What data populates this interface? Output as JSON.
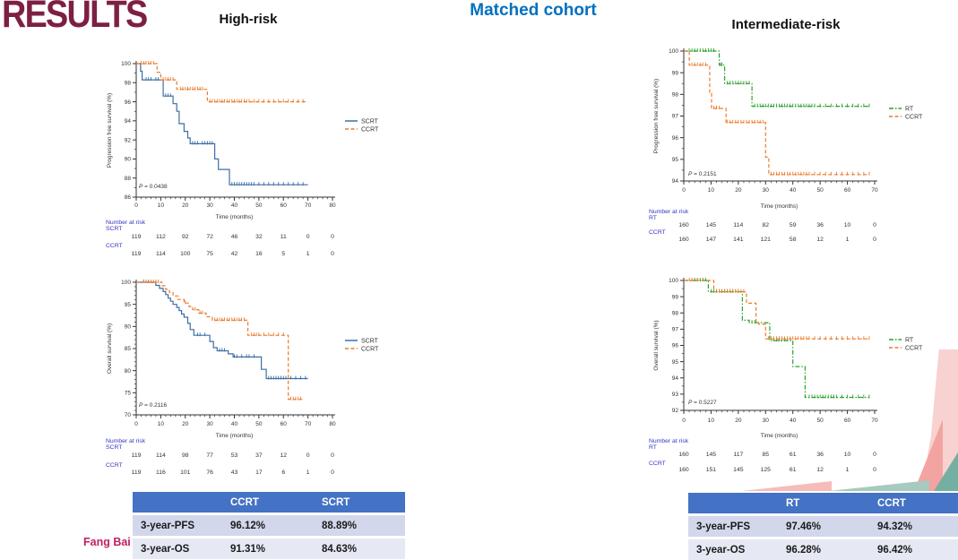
{
  "slide": {
    "title": "RESULTS",
    "columns": {
      "left": "High-risk",
      "center": "Matched cohort",
      "right": "Intermediate-risk"
    },
    "author": "Fang Bai"
  },
  "colors": {
    "title": "#7d1f44",
    "matched_cohort": "#0070c0",
    "author": "#c21f60",
    "scrt": "#3d6fa5",
    "ccrt": "#e97c2c",
    "rt": "#2ca02c",
    "axis": "#333333",
    "at_risk_label": "#3535c3",
    "table_header_bg": "#4472c4",
    "table_row_odd_bg": "#d2d7eb",
    "table_row_even_bg": "#e6e9f4"
  },
  "chart_data": [
    {
      "id": "high_risk_pfs",
      "type": "line",
      "group": "High-risk",
      "ylabel": "Progression free survival (%)",
      "xlabel": "Time (months)",
      "p_value": "P = 0.0438",
      "xlim": [
        0,
        80
      ],
      "xticks": [
        0,
        10,
        20,
        30,
        40,
        50,
        60,
        70,
        80
      ],
      "minor_x": 2,
      "ylim": [
        86,
        100
      ],
      "yticks": [
        86,
        88,
        90,
        92,
        94,
        96,
        98,
        100
      ],
      "minor_y": 1,
      "legend_position": "right",
      "series": [
        {
          "name": "SCRT",
          "color": "#3d6fa5",
          "style": "solid",
          "steps": [
            [
              0,
              100
            ],
            [
              1.8,
              99.2
            ],
            [
              2.4,
              98.3
            ],
            [
              11,
              96.6
            ],
            [
              15,
              95.8
            ],
            [
              16.5,
              95.0
            ],
            [
              17.5,
              93.7
            ],
            [
              19.5,
              92.9
            ],
            [
              21,
              92.2
            ],
            [
              22,
              91.6
            ],
            [
              32,
              90.0
            ],
            [
              33.5,
              88.9
            ],
            [
              38,
              87.3
            ]
          ],
          "end_x": 70,
          "censor_x": [
            4,
            5,
            6,
            8,
            9,
            12,
            13,
            14,
            23,
            24,
            25,
            27,
            28,
            29,
            30,
            31,
            39,
            40,
            41,
            42,
            43,
            44,
            45,
            46,
            47,
            48,
            50,
            52,
            54,
            56,
            58,
            60,
            62,
            64,
            66,
            68
          ]
        },
        {
          "name": "CCRT",
          "color": "#e97c2c",
          "style": "dashed",
          "steps": [
            [
              0,
              100
            ],
            [
              8.5,
              99.1
            ],
            [
              10,
              98.3
            ],
            [
              16.5,
              97.3
            ],
            [
              29,
              96.0
            ]
          ],
          "end_x": 70,
          "censor_x": [
            2,
            3,
            4,
            5,
            6,
            7,
            11,
            12,
            13,
            14,
            15,
            18,
            19,
            20,
            21,
            22,
            23,
            24,
            25,
            26,
            27,
            30,
            31,
            32,
            33,
            34,
            35,
            36,
            37,
            38,
            39,
            40,
            41,
            42,
            43,
            44,
            45,
            46,
            48,
            50,
            52,
            54,
            56,
            58,
            60,
            62,
            64,
            66,
            68
          ]
        }
      ],
      "number_at_risk": {
        "label": "Number at risk",
        "rows": [
          {
            "name": "SCRT",
            "values": [
              119,
              112,
              92,
              72,
              46,
              32,
              11,
              0,
              0
            ]
          },
          {
            "name": "CCRT",
            "values": [
              119,
              114,
              100,
              75,
              42,
              16,
              5,
              1,
              0
            ]
          }
        ]
      }
    },
    {
      "id": "high_risk_os",
      "type": "line",
      "group": "High-risk",
      "ylabel": "Overall survival (%)",
      "xlabel": "Time (months)",
      "p_value": "P = 0.2116",
      "xlim": [
        0,
        80
      ],
      "xticks": [
        0,
        10,
        20,
        30,
        40,
        50,
        60,
        70,
        80
      ],
      "minor_x": 2,
      "ylim": [
        70,
        100
      ],
      "yticks": [
        70,
        75,
        80,
        85,
        90,
        95,
        100
      ],
      "minor_y": 1,
      "legend_position": "right",
      "series": [
        {
          "name": "SCRT",
          "color": "#3d6fa5",
          "style": "solid",
          "steps": [
            [
              0,
              100
            ],
            [
              8,
              99.3
            ],
            [
              9.5,
              98.6
            ],
            [
              11,
              97.9
            ],
            [
              12,
              97.2
            ],
            [
              13,
              96.4
            ],
            [
              14,
              95.7
            ],
            [
              15,
              95.0
            ],
            [
              16.5,
              94.3
            ],
            [
              17.5,
              93.6
            ],
            [
              18.5,
              92.8
            ],
            [
              19.5,
              92.1
            ],
            [
              21,
              90.7
            ],
            [
              22,
              89.3
            ],
            [
              23.5,
              88.0
            ],
            [
              30,
              86.6
            ],
            [
              31.5,
              85.2
            ],
            [
              33,
              84.5
            ],
            [
              37.5,
              83.8
            ],
            [
              39.5,
              83.1
            ],
            [
              51,
              80.3
            ],
            [
              53,
              78.2
            ]
          ],
          "end_x": 70,
          "censor_x": [
            3,
            5,
            25,
            26,
            28,
            34,
            35,
            36,
            40,
            41,
            43,
            45,
            46,
            48,
            54,
            55,
            56,
            57,
            58,
            59,
            60,
            61,
            63,
            65,
            67,
            69
          ]
        },
        {
          "name": "CCRT",
          "color": "#e97c2c",
          "style": "dashed",
          "steps": [
            [
              0,
              100
            ],
            [
              10.5,
              99.2
            ],
            [
              12,
              98.4
            ],
            [
              13.5,
              97.7
            ],
            [
              15,
              96.9
            ],
            [
              17,
              96.1
            ],
            [
              19.5,
              95.3
            ],
            [
              21.5,
              94.5
            ],
            [
              23,
              93.8
            ],
            [
              25.5,
              93.0
            ],
            [
              28.5,
              92.2
            ],
            [
              31,
              91.4
            ],
            [
              45.5,
              88.0
            ],
            [
              62,
              73.5
            ]
          ],
          "end_x": 68,
          "censor_x": [
            3,
            4,
            5,
            6,
            7,
            8,
            9,
            20,
            24,
            26,
            27,
            32,
            33,
            34,
            35,
            36,
            37,
            38,
            39,
            40,
            41,
            42,
            43,
            44,
            47,
            48,
            49,
            50,
            52,
            54,
            56,
            58,
            60,
            63,
            64,
            65,
            66,
            67
          ]
        }
      ],
      "number_at_risk": {
        "label": "Number at risk",
        "rows": [
          {
            "name": "SCRT",
            "values": [
              119,
              114,
              98,
              77,
              53,
              37,
              12,
              0,
              0
            ]
          },
          {
            "name": "CCRT",
            "values": [
              119,
              116,
              101,
              76,
              43,
              17,
              6,
              1,
              0
            ]
          }
        ]
      }
    },
    {
      "id": "intermediate_risk_pfs",
      "type": "line",
      "group": "Intermediate-risk",
      "ylabel": "Progression free survival (%)",
      "xlabel": "Time (months)",
      "p_value": "P = 0.2151",
      "xlim": [
        0,
        70
      ],
      "xticks": [
        0,
        10,
        20,
        30,
        40,
        50,
        60,
        70
      ],
      "minor_x": 2,
      "ylim": [
        94,
        100
      ],
      "yticks": [
        94,
        95,
        96,
        97,
        98,
        99,
        100
      ],
      "minor_y": 0.5,
      "legend_position": "right",
      "series": [
        {
          "name": "RT",
          "color": "#2ca02c",
          "style": "dashdot",
          "steps": [
            [
              0,
              100
            ],
            [
              13,
              99.35
            ],
            [
              15,
              98.5
            ],
            [
              25,
              97.45
            ]
          ],
          "end_x": 68,
          "censor_x": [
            2,
            3,
            4,
            5,
            6,
            7,
            8,
            9,
            10,
            11,
            13.5,
            14,
            16,
            17,
            18,
            19,
            20,
            21,
            22,
            23,
            24,
            26,
            27,
            28,
            29,
            30,
            31,
            32,
            33,
            34,
            35,
            36,
            37,
            38,
            39,
            40,
            41,
            42,
            43,
            44,
            45,
            46,
            47,
            48,
            50,
            52,
            54,
            56,
            58,
            60,
            62,
            64,
            66,
            68
          ]
        },
        {
          "name": "CCRT",
          "color": "#e97c2c",
          "style": "dashed",
          "steps": [
            [
              0,
              100
            ],
            [
              2,
              99.35
            ],
            [
              9.5,
              98.05
            ],
            [
              10.2,
              97.35
            ],
            [
              15.5,
              96.7
            ],
            [
              30,
              95.1
            ],
            [
              31.2,
              94.3
            ]
          ],
          "end_x": 68,
          "censor_x": [
            3,
            4,
            5,
            6,
            7,
            8,
            11,
            12,
            13,
            16,
            17,
            18,
            19,
            20,
            21,
            22,
            23,
            24,
            25,
            26,
            27,
            28,
            29,
            32,
            33,
            34,
            35,
            36,
            37,
            38,
            39,
            40,
            41,
            42,
            43,
            44,
            45,
            46,
            48,
            50,
            52,
            54,
            56,
            58,
            60,
            62,
            64,
            66,
            68
          ]
        }
      ],
      "number_at_risk": {
        "label": "Number at risk",
        "rows": [
          {
            "name": "RT",
            "values": [
              160,
              145,
              114,
              82,
              59,
              36,
              10,
              0
            ]
          },
          {
            "name": "CCRT",
            "values": [
              160,
              147,
              141,
              121,
              58,
              12,
              1,
              0
            ]
          }
        ]
      }
    },
    {
      "id": "intermediate_risk_os",
      "type": "line",
      "group": "Intermediate-risk",
      "ylabel": "Overall survival (%)",
      "xlabel": "Time (months)",
      "p_value": "P = 0.5227",
      "xlim": [
        0,
        70
      ],
      "xticks": [
        0,
        10,
        20,
        30,
        40,
        50,
        60,
        70
      ],
      "minor_x": 2,
      "ylim": [
        92,
        100
      ],
      "yticks": [
        92,
        93,
        94,
        95,
        96,
        97,
        98,
        99,
        100
      ],
      "minor_y": 0.5,
      "legend_position": "right",
      "series": [
        {
          "name": "RT",
          "color": "#2ca02c",
          "style": "dashdot",
          "steps": [
            [
              0,
              100
            ],
            [
              9,
              99.3
            ],
            [
              21.5,
              97.55
            ],
            [
              24,
              97.4
            ],
            [
              31.5,
              96.3
            ],
            [
              40,
              94.7
            ],
            [
              44.5,
              92.8
            ]
          ],
          "end_x": 68,
          "censor_x": [
            4,
            5,
            6,
            7,
            8,
            10,
            11,
            12,
            13,
            14,
            15,
            16,
            17,
            18,
            19,
            20,
            25,
            26,
            33,
            34,
            35,
            36,
            37,
            38,
            46,
            47,
            48,
            49,
            50,
            51,
            52,
            53,
            54,
            55,
            56,
            58,
            60,
            62,
            64,
            66,
            68
          ]
        },
        {
          "name": "CCRT",
          "color": "#e97c2c",
          "style": "dashed",
          "steps": [
            [
              0,
              100
            ],
            [
              11,
              99.3
            ],
            [
              23,
              98.6
            ],
            [
              26.5,
              97.4
            ],
            [
              27.5,
              97.3
            ],
            [
              30,
              96.4
            ]
          ],
          "end_x": 68,
          "censor_x": [
            2,
            3,
            5,
            12,
            13,
            14,
            15,
            16,
            17,
            18,
            19,
            20,
            21,
            22,
            31,
            32,
            33,
            34,
            35,
            36,
            37,
            38,
            39,
            40,
            41,
            42,
            43,
            44,
            45,
            46,
            48,
            50,
            52,
            54,
            56,
            58,
            60,
            62,
            64,
            66,
            68
          ]
        }
      ],
      "number_at_risk": {
        "label": "Number at risk",
        "rows": [
          {
            "name": "RT",
            "values": [
              160,
              145,
              117,
              85,
              61,
              36,
              10,
              0
            ]
          },
          {
            "name": "CCRT",
            "values": [
              160,
              151,
              145,
              125,
              61,
              12,
              1,
              0
            ]
          }
        ]
      }
    }
  ],
  "tables": {
    "high_risk": {
      "headers": [
        "",
        "CCRT",
        "SCRT"
      ],
      "rows": [
        [
          "3-year-PFS",
          "96.12%",
          "88.89%"
        ],
        [
          "3-year-OS",
          "91.31%",
          "84.63%"
        ]
      ]
    },
    "intermediate_risk": {
      "headers": [
        "",
        "RT",
        "CCRT"
      ],
      "rows": [
        [
          "3-year-PFS",
          "97.46%",
          "94.32%"
        ],
        [
          "3-year-OS",
          "96.28%",
          "96.42%"
        ]
      ]
    }
  }
}
